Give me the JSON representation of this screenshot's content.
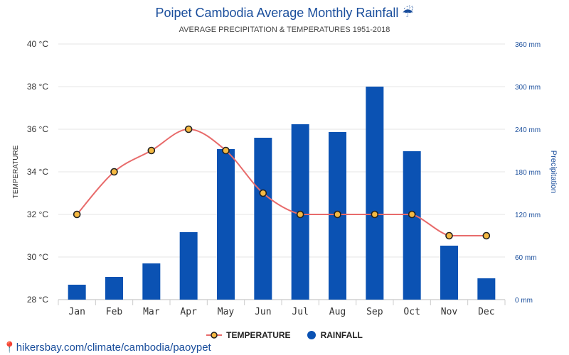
{
  "title": "Poipet Cambodia Average Monthly Rainfall ☔",
  "subtitle": "AVERAGE PRECIPITATION & TEMPERATURES 1951-2018",
  "footer": "hikersbay.com/climate/cambodia/paoypet",
  "legend": {
    "temperature": "TEMPERATURE",
    "rainfall": "RAINFALL"
  },
  "colors": {
    "bar": "#0b52b3",
    "line": "#e86b6b",
    "marker_fill": "#f5b942",
    "marker_stroke": "#222222",
    "left_axis": "#333333",
    "right_axis": "#1a4e9c",
    "grid": "#e6e6e6"
  },
  "chart_data": {
    "type": "bar+line",
    "categories": [
      "Jan",
      "Feb",
      "Mar",
      "Apr",
      "May",
      "Jun",
      "Jul",
      "Aug",
      "Sep",
      "Oct",
      "Nov",
      "Dec"
    ],
    "series": [
      {
        "name": "TEMPERATURE",
        "type": "line",
        "axis": "left",
        "values": [
          32,
          34,
          35,
          36,
          35,
          33,
          32,
          32,
          32,
          32,
          31,
          31
        ]
      },
      {
        "name": "RAINFALL",
        "type": "bar",
        "axis": "right",
        "values": [
          21,
          32,
          51,
          95,
          212,
          228,
          247,
          236,
          300,
          209,
          76,
          30
        ]
      }
    ],
    "y_left": {
      "label": "TEMPERATURE",
      "range": [
        28,
        40
      ],
      "ticks": [
        "28 °C",
        "30 °C",
        "32 °C",
        "34 °C",
        "36 °C",
        "38 °C",
        "40 °C"
      ]
    },
    "y_right": {
      "label": "Precipitation",
      "range": [
        0,
        360
      ],
      "ticks": [
        "0 mm",
        "60 mm",
        "120 mm",
        "180 mm",
        "240 mm",
        "300 mm",
        "360 mm"
      ]
    },
    "grid": true,
    "legend_position": "bottom"
  }
}
